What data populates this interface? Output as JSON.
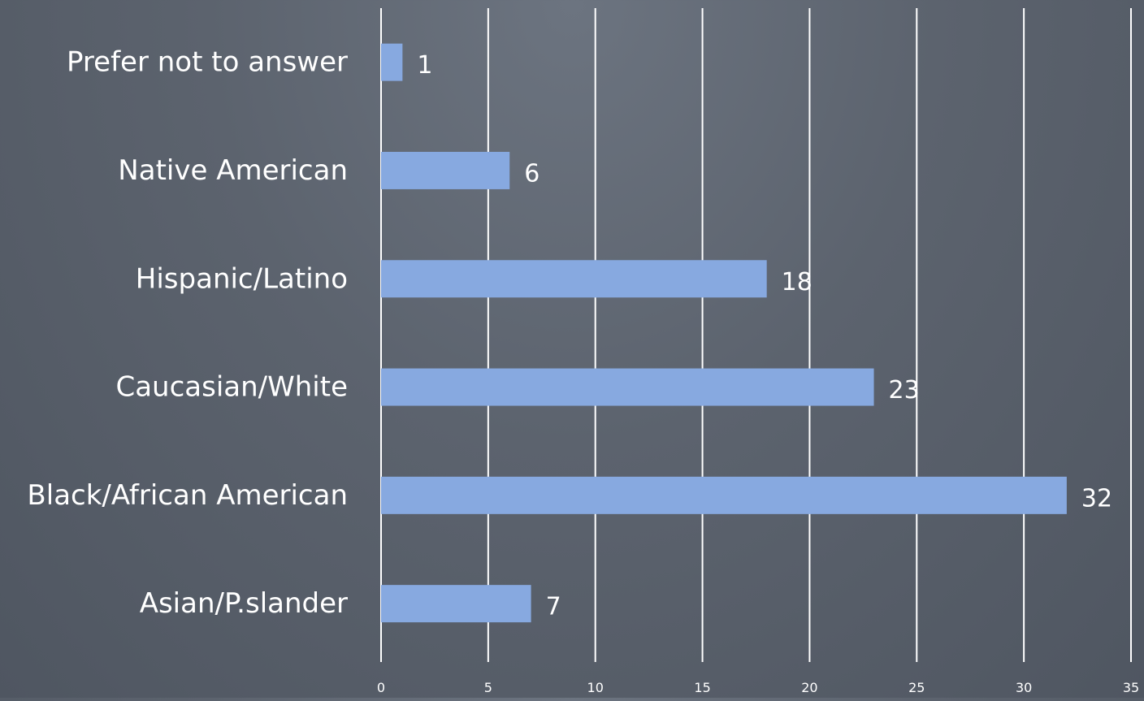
{
  "chart_data": {
    "type": "bar",
    "orientation": "horizontal",
    "title": "",
    "xlabel": "",
    "ylabel": "",
    "categories": [
      "Prefer not to answer",
      "Native American",
      "Hispanic/Latino",
      "Caucasian/White",
      "Black/African American",
      "Asian/P.slander"
    ],
    "values": [
      1,
      6,
      18,
      23,
      32,
      7
    ],
    "data_labels": [
      "1",
      "6",
      "18",
      "23",
      "32",
      "7"
    ],
    "xlim": [
      0,
      35
    ],
    "x_ticks": [
      0,
      5,
      10,
      15,
      20,
      25,
      30,
      35
    ],
    "x_tick_labels": [
      "0",
      "5",
      "10",
      "15",
      "20",
      "25",
      "30",
      "35"
    ],
    "grid": "vertical",
    "legend": "none",
    "colors": {
      "bar": "#87a9e0",
      "grid": "#ffffff",
      "text": "#ffffff"
    }
  }
}
